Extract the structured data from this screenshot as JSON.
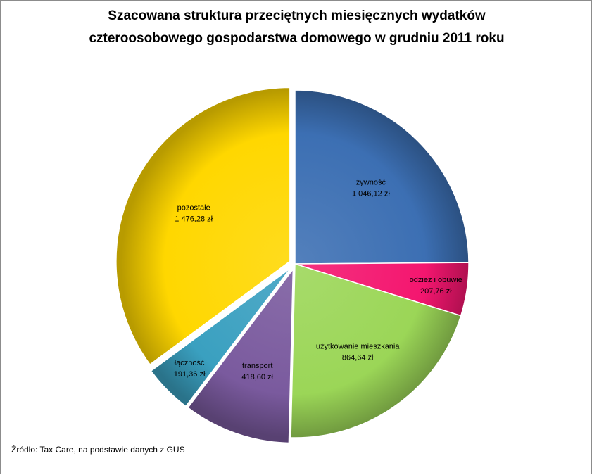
{
  "chart_data": {
    "type": "pie",
    "title_lines": [
      "Szacowana struktura przeciętnych miesięcznych wydatków",
      "czteroosobowego gospodarstwa domowego w grudniu 2011 roku"
    ],
    "slices": [
      {
        "name": "żywność",
        "value": 1046.12,
        "label": "1 046,12 zł",
        "color": "#3C6FB3",
        "exploded": false
      },
      {
        "name": "odzież i obuwie",
        "value": 207.76,
        "label": "207,76 zł",
        "color": "#F4166F",
        "exploded": false
      },
      {
        "name": "użytkowanie mieszkania",
        "value": 864.64,
        "label": "864,64 zł",
        "color": "#9BD657",
        "exploded": false
      },
      {
        "name": "transport",
        "value": 418.6,
        "label": "418,60 zł",
        "color": "#7A5A9E",
        "exploded": true
      },
      {
        "name": "łączność",
        "value": 191.36,
        "label": "191,36 zł",
        "color": "#3AA0C0",
        "exploded": true
      },
      {
        "name": "pozostałe",
        "value": 1476.28,
        "label": "1 476,28 zł",
        "color": "#FFD700",
        "exploded": true
      }
    ],
    "start_direction": "12 o'clock, clockwise",
    "style": "3D shaded pie"
  },
  "source_note": "Źródło: Tax Care, na podstawie danych z GUS"
}
